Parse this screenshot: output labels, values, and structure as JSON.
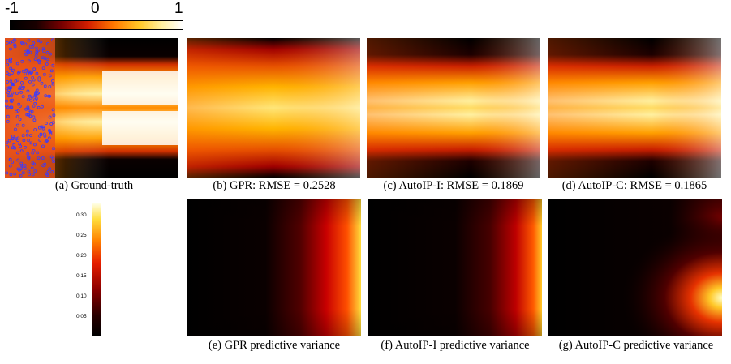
{
  "top_colorbar": {
    "min_label": "-1",
    "mid_label": "0",
    "max_label": "1"
  },
  "variance_colorbar": {
    "ticks": [
      "0.30",
      "0.25",
      "0.20",
      "0.15",
      "0.10",
      "0.05"
    ]
  },
  "captions": {
    "a": "(a) Ground-truth",
    "b": "(b) GPR: RMSE = 0.2528",
    "c": "(c) AutoIP-I: RMSE = 0.1869",
    "d": "(d) AutoIP-C: RMSE = 0.1865",
    "e": "(e) GPR predictive variance",
    "f": "(f) AutoIP-I predictive variance",
    "g": "(g) AutoIP-C predictive variance"
  },
  "colors": {
    "hot_dark": "#0a0000",
    "hot_red": "#c81400",
    "hot_orange": "#ff8c00",
    "hot_yellow": "#ffe650",
    "hot_white": "#ffffff",
    "marker": "#3a3aff"
  }
}
